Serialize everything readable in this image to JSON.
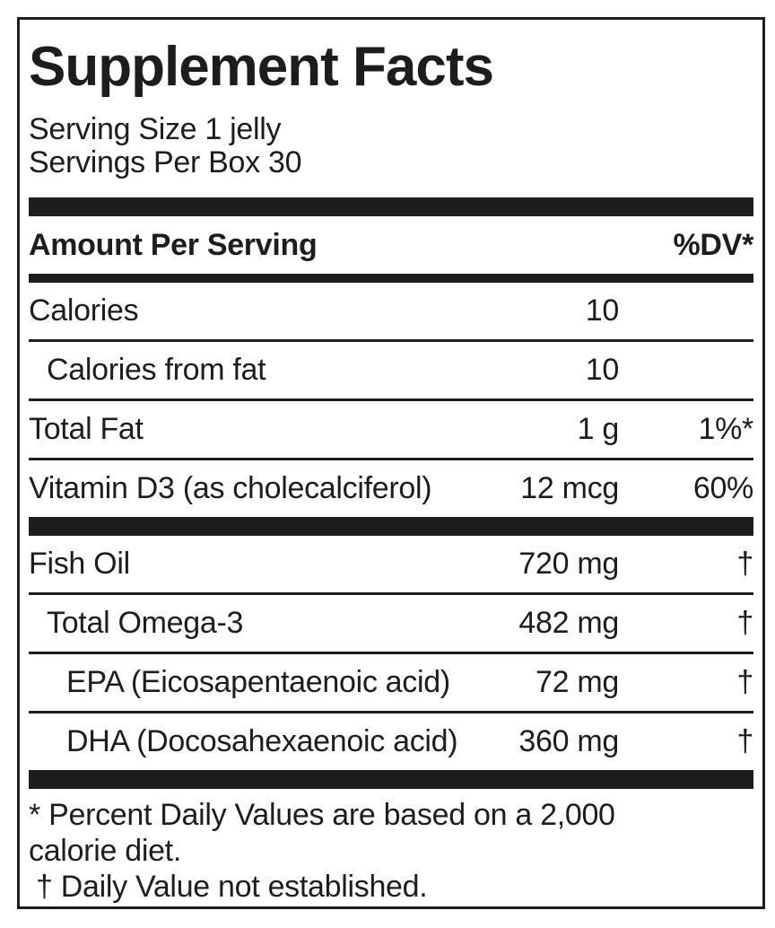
{
  "colors": {
    "ink": "#1d1d1b",
    "paper": "#ffffff"
  },
  "label": {
    "title": "Supplement Facts",
    "serving": {
      "size": "Serving Size 1 jelly",
      "per_box": "Servings Per Box 30"
    },
    "header": {
      "left": "Amount Per Serving",
      "right": "%DV*"
    },
    "rows": [
      {
        "name": "Calories",
        "amount": "10",
        "dv": "",
        "indent": 0
      },
      {
        "name": "Calories from fat",
        "amount": "10",
        "dv": "",
        "indent": 1
      },
      {
        "name": "Total Fat",
        "amount": "1 g",
        "dv": "1%*",
        "indent": 0
      },
      {
        "name": "Vitamin D3 (as cholecalciferol)",
        "amount": "12 mcg",
        "dv": "60%",
        "indent": 0
      },
      {
        "name": "Fish Oil",
        "amount": "720 mg",
        "dv": "†",
        "indent": 0
      },
      {
        "name": "Total Omega-3",
        "amount": "482 mg",
        "dv": "†",
        "indent": 1
      },
      {
        "name": "EPA (Eicosapentaenoic acid)",
        "amount": "72 mg",
        "dv": "†",
        "indent": 2
      },
      {
        "name": "DHA (Docosahexaenoic acid)",
        "amount": "360 mg",
        "dv": "†",
        "indent": 2
      }
    ],
    "footnotes": {
      "percent_dv": "* Percent Daily Values are based on a 2,000 calorie diet.",
      "dagger": "† Daily Value not established."
    }
  }
}
